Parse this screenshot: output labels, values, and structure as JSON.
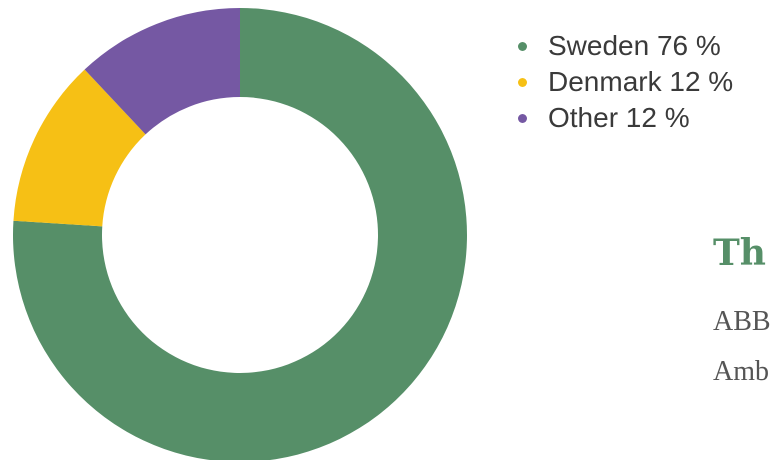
{
  "chart_data": {
    "type": "pie",
    "donut": true,
    "categories": [
      "Sweden",
      "Denmark",
      "Other"
    ],
    "values": [
      76,
      12,
      12
    ],
    "unit": "%",
    "colors": [
      "#568f68",
      "#f6c015",
      "#7558a3"
    ],
    "legend": {
      "position": "right",
      "entries": [
        "Sweden 76 %",
        "Denmark 12 %",
        "Other 12 %"
      ]
    }
  },
  "text_block": {
    "heading": "Th",
    "lines": [
      "ABB",
      "Amb"
    ]
  }
}
